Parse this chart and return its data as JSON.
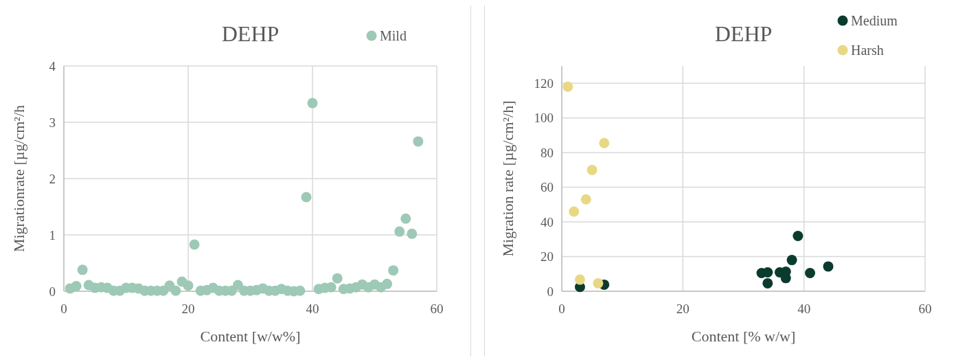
{
  "chart_data": [
    {
      "type": "scatter",
      "title": "DEHP",
      "xlabel": "Content [w/w%]",
      "ylabel": "Migrationrate [µg/cm²/h",
      "xlim": [
        0,
        60
      ],
      "xticks": [
        0,
        20,
        40,
        60
      ],
      "ylim": [
        0,
        4
      ],
      "yticks": [
        0,
        1,
        2,
        3,
        4
      ],
      "grid": true,
      "legend": "top right",
      "marker": "circle",
      "series": [
        {
          "name": "Mild",
          "color": "#9dc9b6",
          "x": [
            1,
            2,
            3,
            4,
            5,
            6,
            7,
            8,
            9,
            10,
            11,
            12,
            13,
            14,
            15,
            16,
            17,
            18,
            19,
            20,
            21,
            22,
            23,
            24,
            25,
            26,
            27,
            28,
            29,
            30,
            31,
            32,
            33,
            34,
            35,
            36,
            37,
            38,
            39,
            40,
            41,
            42,
            43,
            44,
            45,
            46,
            47,
            48,
            49,
            50,
            51,
            52,
            53,
            54,
            55,
            56,
            57
          ],
          "values": [
            0.05,
            0.09,
            0.38,
            0.11,
            0.06,
            0.07,
            0.06,
            0.01,
            0.01,
            0.06,
            0.06,
            0.05,
            0.01,
            0.01,
            0.01,
            0.01,
            0.1,
            0.01,
            0.17,
            0.1,
            0.83,
            0.01,
            0.02,
            0.06,
            0.01,
            0.01,
            0.01,
            0.11,
            0.01,
            0.01,
            0.02,
            0.05,
            0.01,
            0.01,
            0.04,
            0.01,
            0.0,
            0.01,
            1.67,
            3.34,
            0.04,
            0.06,
            0.07,
            0.23,
            0.04,
            0.05,
            0.07,
            0.12,
            0.07,
            0.12,
            0.07,
            0.13,
            0.37,
            1.06,
            1.29,
            1.02,
            2.66
          ]
        }
      ]
    },
    {
      "type": "scatter",
      "title": "DEHP",
      "xlabel": "Content [% w/w]",
      "ylabel": "Migration rate [µg/cm²/h]",
      "xlim": [
        0,
        60
      ],
      "xticks": [
        0,
        20,
        40,
        60
      ],
      "ylim": [
        0,
        130
      ],
      "yticks": [
        0,
        20,
        40,
        60,
        80,
        100,
        120
      ],
      "grid": true,
      "legend": "top right",
      "marker": "circle",
      "series": [
        {
          "name": "Medium",
          "color": "#0b3b2e",
          "x": [
            3,
            7,
            39,
            38,
            33,
            34,
            36,
            37,
            37,
            34,
            41,
            44
          ],
          "values": [
            2.5,
            3.8,
            31.9,
            18,
            10.5,
            10.9,
            10.9,
            11.3,
            7.6,
            4.6,
            10.5,
            14.3
          ]
        },
        {
          "name": "Harsh",
          "color": "#e8d883",
          "x": [
            1,
            2,
            4,
            5,
            7,
            3,
            6
          ],
          "values": [
            118,
            46,
            53,
            70,
            85.5,
            6.7,
            4.6
          ]
        }
      ]
    }
  ]
}
